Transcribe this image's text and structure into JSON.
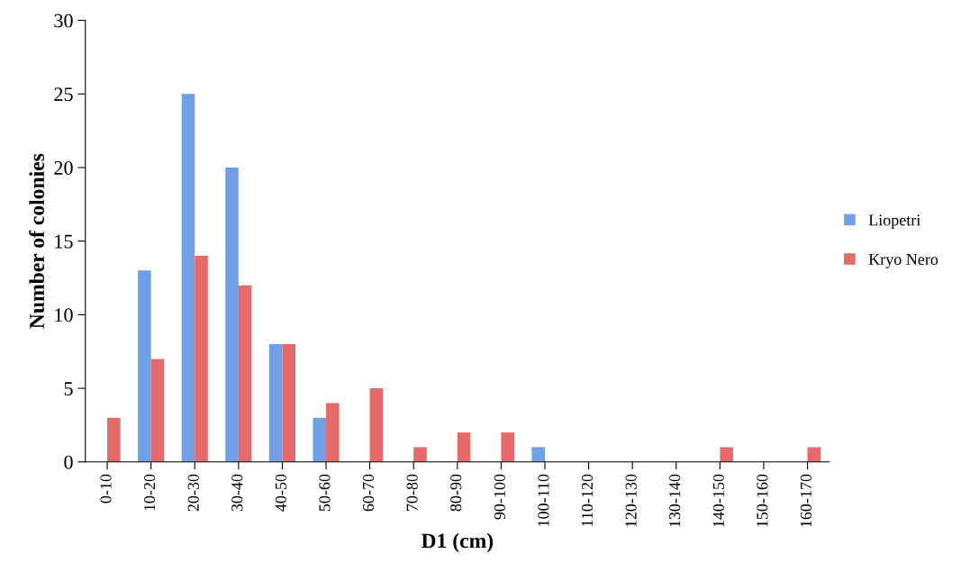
{
  "chart_data": {
    "type": "bar",
    "xlabel": "D1 (cm)",
    "ylabel": "Number of colonies",
    "categories": [
      "0-10",
      "10-20",
      "20-30",
      "30-40",
      "40-50",
      "50-60",
      "60-70",
      "70-80",
      "80-90",
      "90-100",
      "100-110",
      "110-120",
      "120-130",
      "130-140",
      "140-150",
      "150-160",
      "160-170"
    ],
    "series": [
      {
        "name": "Liopetri",
        "color": "#6f9fe6",
        "values": [
          0,
          13,
          25,
          20,
          8,
          3,
          0,
          0,
          0,
          0,
          1,
          0,
          0,
          0,
          0,
          0,
          0
        ]
      },
      {
        "name": "Kryo Nero",
        "color": "#e66a6a",
        "values": [
          3,
          7,
          14,
          12,
          8,
          4,
          5,
          1,
          2,
          2,
          0,
          0,
          0,
          0,
          1,
          0,
          1
        ]
      }
    ],
    "ylim": [
      0,
      30
    ],
    "yticks": [
      0,
      5,
      10,
      15,
      20,
      25,
      30
    ],
    "grid": false,
    "legend": "right"
  }
}
